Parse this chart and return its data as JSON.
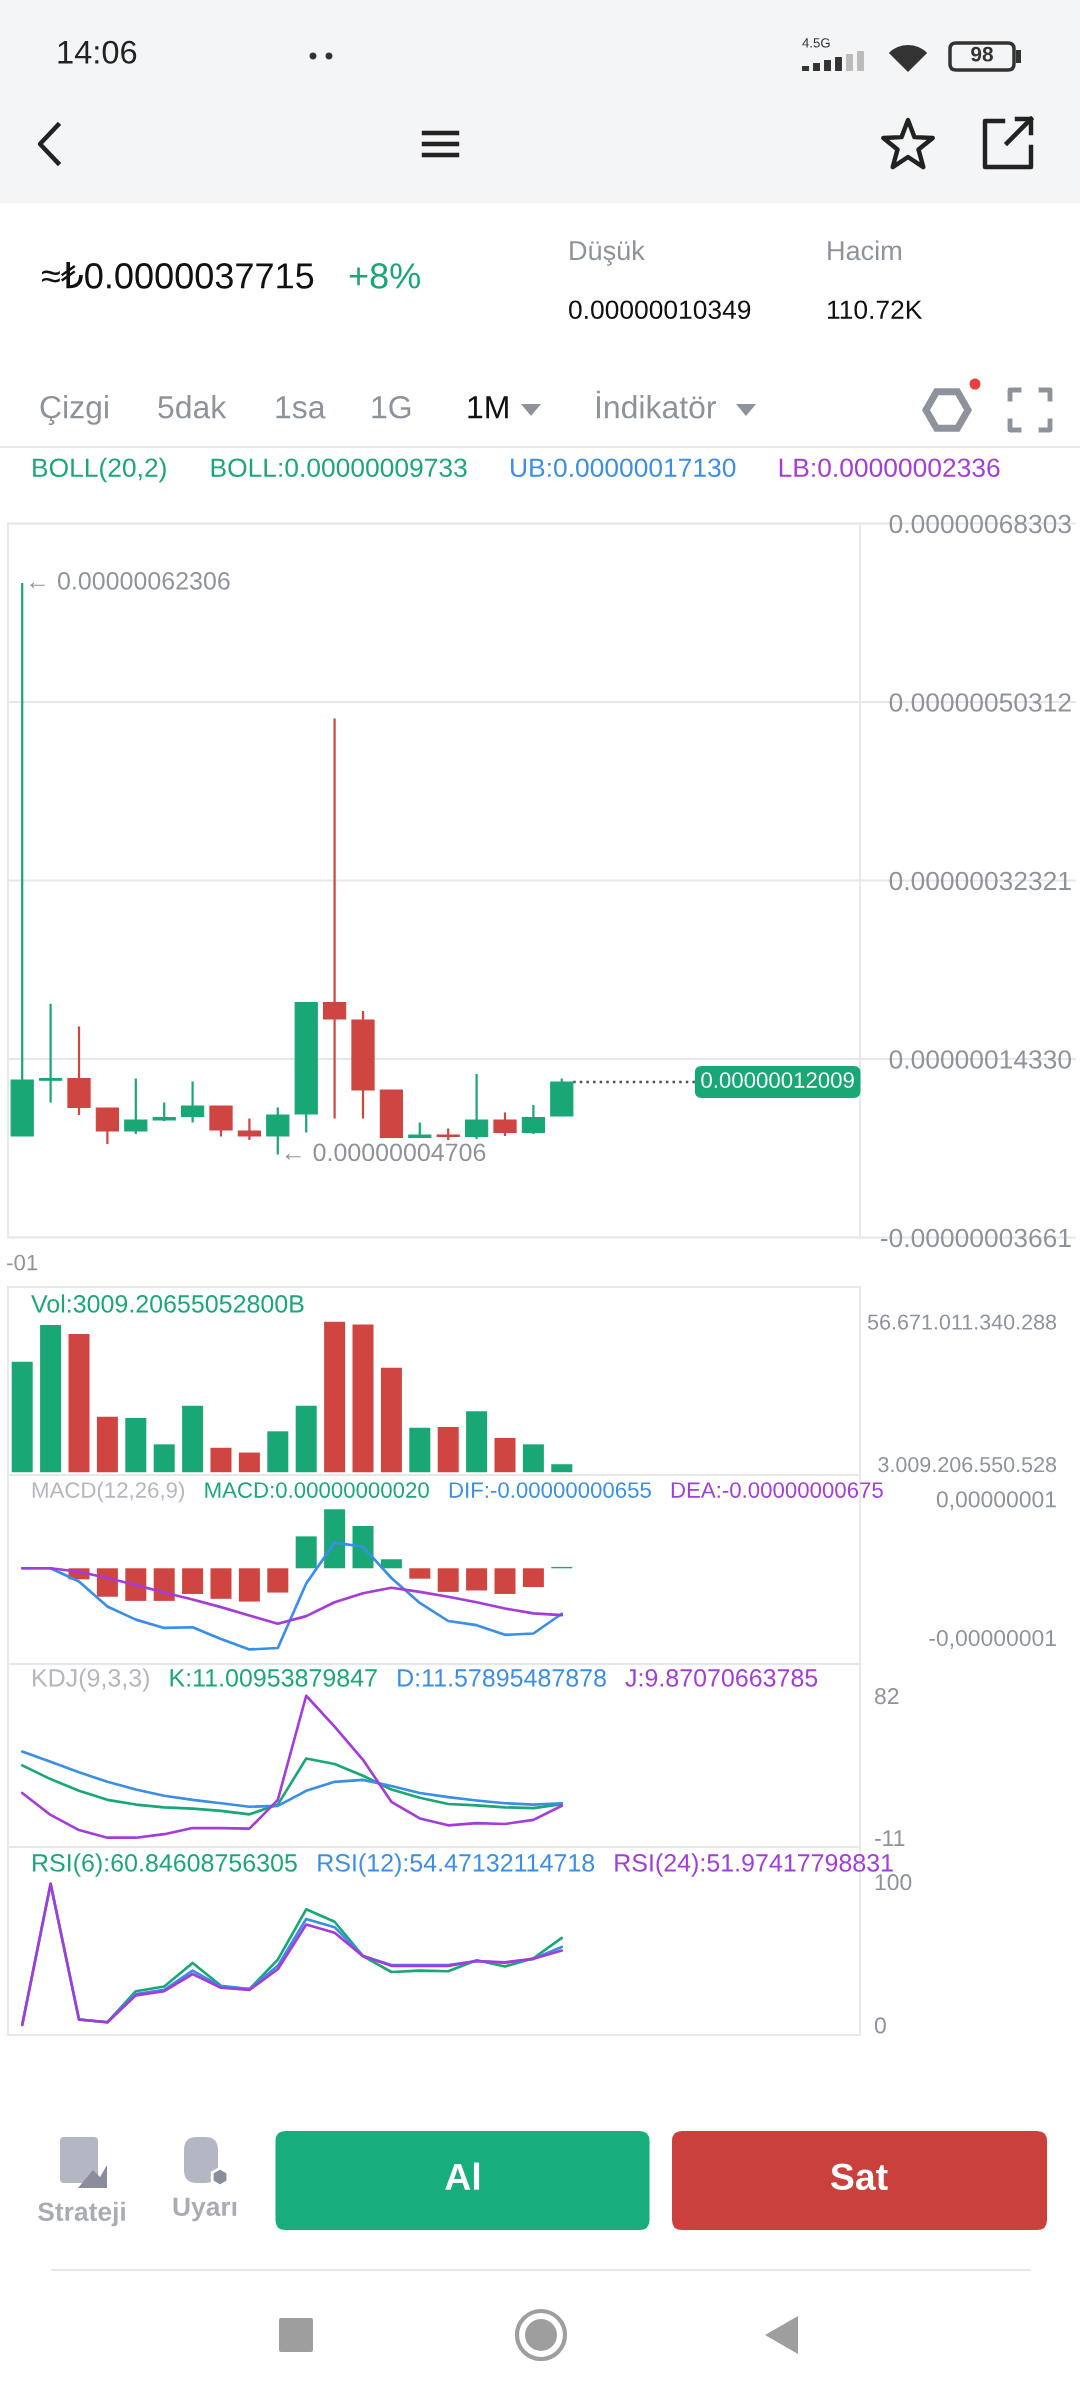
{
  "chart_data": [
    {
      "type": "other",
      "annotations": [
        "14:06",
        "4.5G",
        "98",
        "≈₺0.0000037715",
        "+8%",
        "Düşük",
        "0.00000010349",
        "Hacim",
        "110.72K",
        "Çizgi",
        "5dak",
        "1sa",
        "1G",
        "1M",
        "İndikatör"
      ]
    },
    {
      "type": "candlestick",
      "categories": [
        "-01",
        null,
        null,
        null,
        null,
        null,
        null,
        null,
        null,
        null,
        null,
        null,
        null,
        null,
        null,
        null,
        null,
        null,
        null,
        null,
        null,
        null,
        null,
        null,
        null,
        null,
        null,
        null,
        null,
        null
      ],
      "ohlc": [
        [
          6.57e-08,
          6.2306e-07,
          6.57e-08,
          1.221e-07
        ],
        [
          1.22e-07,
          1.99e-07,
          9.94e-08,
          1.236e-07
        ],
        [
          1.236e-07,
          1.761e-07,
          8.69e-08,
          9.44e-08
        ],
        [
          9.39e-08,
          9.39e-08,
          5.76e-08,
          7.07e-08
        ],
        [
          7.07e-08,
          1.236e-07,
          6.77e-08,
          8.18e-08
        ],
        [
          8.18e-08,
          9.94e-08,
          8.08e-08,
          8.43e-08
        ],
        [
          8.53e-08,
          1.206e-07,
          7.93e-08,
          9.59e-08
        ],
        [
          9.59e-08,
          9.59e-08,
          6.52e-08,
          7.17e-08
        ],
        [
          7.07e-08,
          8.33e-08,
          6.16e-08,
          6.57e-08
        ],
        [
          6.57e-08,
          9.44e-08,
          4.706e-08,
          8.69e-08
        ],
        [
          8.79e-08,
          2.003e-07,
          6.92e-08,
          2.003e-07
        ],
        [
          2.003e-07,
          4.865e-07,
          8.33e-08,
          1.836e-07
        ],
        [
          1.826e-07,
          1.917e-07,
          8.33e-08,
          1.12e-07
        ],
        [
          1.12e-07,
          1.12e-07,
          6.42e-08,
          6.42e-08
        ],
        [
          6.42e-08,
          7.93e-08,
          6.42e-08,
          6.67e-08
        ],
        [
          6.67e-08,
          7.33e-08,
          6.16e-08,
          6.52e-08
        ],
        [
          6.52e-08,
          1.282e-07,
          6.27e-08,
          8.18e-08
        ],
        [
          8.18e-08,
          8.94e-08,
          6.57e-08,
          6.92e-08
        ],
        [
          6.92e-08,
          9.69e-08,
          6.77e-08,
          8.43e-08
        ],
        [
          8.59e-08,
          1.236e-07,
          8.59e-08,
          1.2009e-07
        ],
        null,
        null,
        null,
        null,
        null,
        null,
        null,
        null,
        null,
        null
      ],
      "colors": [
        "#1aa776",
        "#1aa776",
        "#cf4541",
        "#cf4541",
        "#1aa776",
        "#1aa776",
        "#1aa776",
        "#cf4541",
        "#cf4541",
        "#1aa776",
        "#1aa776",
        "#cf4541",
        "#cf4541",
        "#cf4541",
        "#1aa776",
        "#cf4541",
        "#1aa776",
        "#cf4541",
        "#1aa776",
        "#1aa776",
        null,
        null,
        null,
        null,
        null,
        null,
        null,
        null,
        null,
        null
      ],
      "ylim": [
        -3.661e-08,
        6.8303e-07
      ],
      "yticks": [
        {
          "value": 6.8303e-07,
          "label": "0.00000068303"
        },
        {
          "value": 5.0312e-07,
          "label": "0.00000050312"
        },
        {
          "value": 3.2321e-07,
          "label": "0.00000032321"
        },
        {
          "value": 1.433e-07,
          "label": "0.00000014330"
        },
        {
          "value": -3.661e-08,
          "label": "-0.00000003661"
        }
      ],
      "grid": "y",
      "annotations": [
        {
          "text": "← 0.00000062306",
          "x": "-01",
          "y": 6.2306e-07
        },
        "← 0.00000004706",
        "BOLL(20,2)",
        "BOLL:0.00000009733",
        "UB:0.00000017130",
        "LB:0.00000002336"
      ],
      "ref_lines": [
        {
          "axis": "y",
          "value": 1.2009e-07,
          "label": "0.00000012009",
          "color": "#4a4f57",
          "line_style": "dotted"
        }
      ]
    },
    {
      "type": "bar",
      "categories": [
        null,
        null,
        null,
        null,
        null,
        null,
        null,
        null,
        null,
        null,
        null,
        null,
        null,
        null,
        null,
        null,
        null,
        null,
        null,
        null,
        null,
        null,
        null,
        null,
        null,
        null,
        null,
        null,
        null,
        null
      ],
      "series": [
        {
          "name": "Vol:3009.20655052800B",
          "color": "#1aa776",
          "colors": [
            "#1aa776",
            "#1aa776",
            "#cf4541",
            "#cf4541",
            "#1aa776",
            "#1aa776",
            "#1aa776",
            "#cf4541",
            "#cf4541",
            "#1aa776",
            "#1aa776",
            "#cf4541",
            "#cf4541",
            "#cf4541",
            "#1aa776",
            "#cf4541",
            "#1aa776",
            "#cf4541",
            "#1aa776",
            "#1aa776",
            null,
            null,
            null,
            null,
            null,
            null,
            null,
            null,
            null,
            null
          ],
          "values": [
            41600000000000.0,
            55400000000000.0,
            52000000000000.0,
            20900000000000.0,
            20400000000000.0,
            10500000000000.0,
            25000000000000.0,
            9200000000000.0,
            7400000000000.0,
            15400000000000.0,
            25000000000000.0,
            56671011340288.0,
            55600000000000.0,
            39300000000000.0,
            16700000000000.0,
            17000000000000.0,
            23000000000000.0,
            12900000000000.0,
            10500000000000.0,
            3009206550528.0,
            null,
            null,
            null,
            null,
            null,
            null,
            null,
            null,
            null,
            null
          ]
        }
      ],
      "ylim": [
        -1050000000000.0,
        69740000000000.0
      ],
      "yticks": [
        {
          "value": 56671011340288.0,
          "label": "56.671.011.340.288"
        },
        {
          "value": 3009206550528.0,
          "label": "3.009.206.550.528"
        }
      ],
      "tick_labels": "y"
    },
    {
      "type": "bar",
      "categories": [
        null,
        null,
        null,
        null,
        null,
        null,
        null,
        null,
        null,
        null,
        null,
        null,
        null,
        null,
        null,
        null,
        null,
        null,
        null,
        null,
        null,
        null,
        null,
        null,
        null,
        null,
        null,
        null,
        null,
        null
      ],
      "legend_title": "MACD(12,26,9)",
      "series": [
        {
          "type": "bar",
          "name": "MACD:0.00000000020",
          "color": "#1aa776",
          "colors": [
            "#1aa776",
            "#1aa776",
            "#cf4541",
            "#cf4541",
            "#cf4541",
            "#cf4541",
            "#cf4541",
            "#cf4541",
            "#cf4541",
            "#cf4541",
            "#1aa776",
            "#1aa776",
            "#1aa776",
            "#1aa776",
            "#cf4541",
            "#cf4541",
            "#cf4541",
            "#cf4541",
            "#cf4541",
            "#1aa776",
            null,
            null,
            null,
            null,
            null,
            null,
            null,
            null,
            null,
            null
          ],
          "values": [
            null,
            null,
            -1.6e-09,
            -4.1e-09,
            -4.7e-09,
            -4.7e-09,
            -3.7e-09,
            -4.4e-09,
            -4.8e-09,
            -3.5e-09,
            4.6e-09,
            8.5e-09,
            6.1e-09,
            1.3e-09,
            -1.5e-09,
            -3.4e-09,
            -3.2e-09,
            -3.7e-09,
            -2.7e-09,
            2e-10,
            null,
            null,
            null,
            null,
            null,
            null,
            null,
            null,
            null,
            null
          ]
        },
        {
          "type": "line",
          "name": "DIF:-0.00000000655",
          "color": "#3a8ee6",
          "values": [
            0,
            0,
            -1.9e-09,
            -5.5e-09,
            -7.4e-09,
            -8.6e-09,
            -8.5e-09,
            -1.02e-08,
            -1.17e-08,
            -1.15e-08,
            -2.2e-09,
            3.7e-09,
            3.1e-09,
            -1.4e-09,
            -5e-09,
            -7.6e-09,
            -8.2e-09,
            -9.6e-09,
            -9.4e-09,
            -6.55e-09,
            null,
            null,
            null,
            null,
            null,
            null,
            null,
            null,
            null,
            null
          ]
        },
        {
          "type": "line",
          "name": "DEA:-0.00000000675",
          "color": "#a43cd9",
          "values": [
            0,
            0,
            -5e-10,
            -1.4e-09,
            -2.4e-09,
            -3.5e-09,
            -4.5e-09,
            -5.6e-09,
            -6.8e-09,
            -8e-09,
            -6.9e-09,
            -4.9e-09,
            -3.6e-09,
            -2.8e-09,
            -3.4e-09,
            -4.1e-09,
            -4.9e-09,
            -5.8e-09,
            -6.5e-09,
            -6.75e-09,
            null,
            null,
            null,
            null,
            null,
            null,
            null,
            null,
            null,
            null
          ]
        }
      ],
      "ylim": [
        -1.38e-08,
        1.345e-08
      ],
      "yticks": [
        {
          "value": 1e-08,
          "label": "0,00000001"
        },
        {
          "value": -1e-08,
          "label": "-0,00000001"
        }
      ],
      "tick_labels": "y"
    },
    {
      "type": "line",
      "categories": [
        null,
        null,
        null,
        null,
        null,
        null,
        null,
        null,
        null,
        null,
        null,
        null,
        null,
        null,
        null,
        null,
        null,
        null,
        null,
        null,
        null,
        null,
        null,
        null,
        null,
        null,
        null,
        null,
        null,
        null
      ],
      "legend_title": "KDJ(9,3,3)",
      "series": [
        {
          "type": "line",
          "name": "K:11.00953879847",
          "color": "#1aa776",
          "values": [
            36.4,
            27.4,
            19.7,
            13.8,
            10.7,
            8.9,
            8.0,
            6.6,
            4.3,
            10.7,
            40.9,
            37.3,
            29.6,
            20.6,
            15.2,
            11.1,
            10.2,
            8.9,
            8.4,
            11.0,
            null,
            null,
            null,
            null,
            null,
            null,
            null,
            null,
            null,
            null
          ]
        },
        {
          "type": "line",
          "name": "D:11.57895487878",
          "color": "#3a8ee6",
          "values": [
            45.4,
            38.7,
            31.9,
            25.6,
            20.6,
            16.5,
            13.8,
            11.6,
            9.3,
            9.8,
            19.7,
            25.6,
            26.9,
            22.9,
            18.3,
            15.6,
            13.4,
            11.6,
            10.7,
            11.6,
            null,
            null,
            null,
            null,
            null,
            null,
            null,
            null,
            null,
            null
          ]
        },
        {
          "type": "line",
          "name": "J:9.87070663785",
          "color": "#a43cd9",
          "values": [
            18.3,
            3.9,
            -6.0,
            -11,
            -11,
            -8.7,
            -4.7,
            -4.7,
            -5.1,
            13.8,
            82,
            61.7,
            40,
            12.5,
            1.6,
            -2.9,
            -1.5,
            -2.0,
            0.7,
            9.9,
            null,
            null,
            null,
            null,
            null,
            null,
            null,
            null,
            null,
            null
          ]
        }
      ],
      "ylim": [
        -17.1,
        102.8
      ],
      "yticks": [
        {
          "value": 82,
          "label": "82"
        },
        {
          "value": -11,
          "label": "-11"
        }
      ],
      "tick_labels": "y"
    },
    {
      "type": "line",
      "categories": [
        null,
        null,
        null,
        null,
        null,
        null,
        null,
        null,
        null,
        null,
        null,
        null,
        null,
        null,
        null,
        null,
        null,
        null,
        null,
        null,
        null,
        null,
        null,
        null,
        null,
        null,
        null,
        null,
        null,
        null
      ],
      "series": [
        {
          "type": "line",
          "name": "RSI(6):60.84608756305",
          "color": "#1aa776",
          "values": [
            null,
            null,
            3.8,
            1.9,
            23.6,
            26.9,
            43.3,
            27.4,
            25.0,
            45.7,
            80.8,
            72.1,
            48.1,
            37.0,
            38.0,
            37.5,
            45.2,
            40.9,
            46.6,
            60.8,
            null,
            null,
            null,
            null,
            null,
            null,
            null,
            null,
            null,
            null
          ]
        },
        {
          "type": "line",
          "name": "RSI(12):54.47132114718",
          "color": "#3a8ee6",
          "values": [
            0,
            98.6,
            3.8,
            1.9,
            21.6,
            24.5,
            38.0,
            26.9,
            25.0,
            41.3,
            74.0,
            68.3,
            48.1,
            41.8,
            41.8,
            41.8,
            44.7,
            43.3,
            46.2,
            54.5,
            null,
            null,
            null,
            null,
            null,
            null,
            null,
            null,
            null,
            null
          ]
        },
        {
          "type": "line",
          "name": "RSI(24):51.97417798831",
          "color": "#a43cd9",
          "values": [
            0,
            98.6,
            3.8,
            1.9,
            20.7,
            23.6,
            35.6,
            26.0,
            24.5,
            38.9,
            70.2,
            64.4,
            48.1,
            41.3,
            41.3,
            41.3,
            44.7,
            43.8,
            46.2,
            52.0,
            null,
            null,
            null,
            null,
            null,
            null,
            null,
            null,
            null,
            null
          ]
        }
      ],
      "ylim": [
        -7,
        124.3
      ],
      "yticks": [
        {
          "value": 100,
          "label": "100"
        },
        {
          "value": 0,
          "label": "0"
        }
      ],
      "tick_labels": "y"
    },
    {
      "type": "other",
      "annotations": [
        "Strateji",
        "Uyarı",
        "Al",
        "Sat"
      ]
    }
  ]
}
